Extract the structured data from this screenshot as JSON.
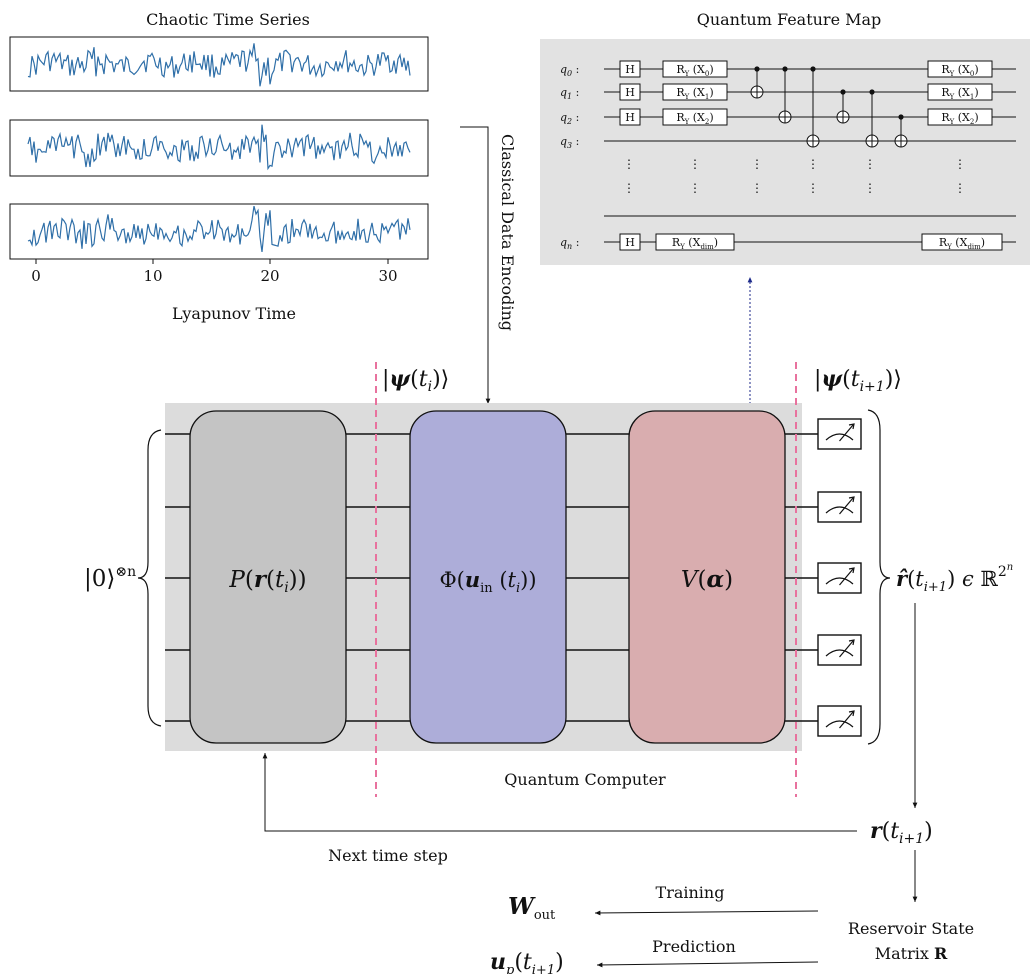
{
  "time_series": {
    "title": "Chaotic Time Series",
    "x_label": "Lyapunov Time",
    "x_ticks": [
      "0",
      "10",
      "20",
      "30"
    ],
    "line_color": "#2f6fa8"
  },
  "encoding_label": "Classical Data Encoding",
  "feature_map": {
    "title": "Quantum Feature Map",
    "background": "#e2e2e2",
    "qubits": [
      {
        "label": "q",
        "sub": "0",
        "rot": "X",
        "rot_sub": "0"
      },
      {
        "label": "q",
        "sub": "1",
        "rot": "X",
        "rot_sub": "1"
      },
      {
        "label": "q",
        "sub": "2",
        "rot": "X",
        "rot_sub": "2"
      },
      {
        "label": "q",
        "sub": "3"
      }
    ],
    "last_qubit": {
      "label": "q",
      "sub": "n",
      "rot": "X",
      "rot_sub": "dim"
    },
    "hadamard": "H",
    "rotation": "R",
    "rotation_sub": "Y",
    "separator": ":",
    "vdots": "⋮"
  },
  "circuit": {
    "background": "#dcdcdc",
    "state_in": {
      "ket": "|",
      "psi": "ψ",
      "open": "(",
      "var": "t",
      "sub": "i",
      "close": ")⟩"
    },
    "state_out": {
      "ket": "|",
      "psi": "ψ",
      "open": "(",
      "var": "t",
      "sub": "i+1",
      "close": ")⟩"
    },
    "init_state": {
      "ket": "|0⟩",
      "sup": "⊗n"
    },
    "block_p": {
      "fn": "P",
      "vec": "r",
      "var": "t",
      "sub": "i",
      "color": "#c4c4c4"
    },
    "block_phi": {
      "fn": "Φ",
      "vec": "u",
      "vec_sub": "in",
      "var": "t",
      "sub": "i",
      "color": "#adadd9"
    },
    "block_v": {
      "fn": "V",
      "param": "α",
      "color": "#d9adaf"
    },
    "caption": "Quantum Computer",
    "divider_color": "#e8729e"
  },
  "readout": {
    "r_hat": {
      "vec": "r̂",
      "var": "t",
      "sub": "i+1",
      "in": "ϵ",
      "space": "ℝ",
      "sup": "2",
      "sup_n": "n"
    },
    "r": {
      "vec": "r",
      "var": "t",
      "sub": "i+1"
    },
    "next_step": "Next time step",
    "reservoir_line1": "Reservoir State",
    "reservoir_line2": "Matrix",
    "reservoir_symbol": "R",
    "training": "Training",
    "prediction": "Prediction",
    "w_out": {
      "sym": "W",
      "sub": "out"
    },
    "u_p": {
      "sym": "u",
      "sub": "p",
      "var": "t",
      "sub2": "i+1"
    }
  }
}
